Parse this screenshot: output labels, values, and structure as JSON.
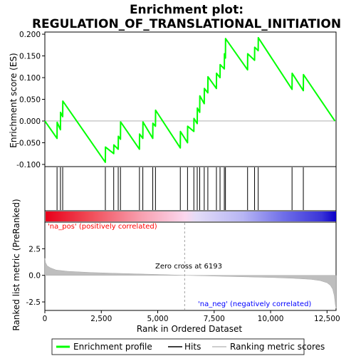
{
  "chart_data": [
    {
      "type": "line",
      "title": "Enrichment plot:",
      "subtitle": "REGULATION_OF_TRANSLATIONAL_INITIATION",
      "ylabel": "Enrichment score (ES)",
      "ylim": [
        -0.105,
        0.205
      ],
      "xlim": [
        0,
        12900
      ],
      "yticks": [
        "-0.100",
        "-0.050",
        "0.000",
        "0.050",
        "0.100",
        "0.150",
        "0.200"
      ],
      "ytick_values": [
        -0.1,
        -0.05,
        0.0,
        0.05,
        0.1,
        0.15,
        0.2
      ],
      "series": [
        {
          "name": "Enrichment profile",
          "color": "#00ff00",
          "x": [
            0,
            540,
            545,
            690,
            695,
            790,
            795,
            2680,
            2685,
            3050,
            3055,
            3250,
            3255,
            3350,
            3355,
            4190,
            4195,
            4340,
            4345,
            4780,
            4785,
            4900,
            4905,
            6000,
            6005,
            6320,
            6325,
            6600,
            6605,
            6750,
            6755,
            6860,
            6865,
            7060,
            7065,
            7220,
            7225,
            7600,
            7605,
            7760,
            7765,
            7950,
            7955,
            8000,
            8005,
            8980,
            8985,
            9290,
            9295,
            9450,
            9455,
            10950,
            10955,
            11450,
            11455,
            12850
          ],
          "y": [
            0.0,
            -0.04,
            -0.003,
            -0.02,
            0.02,
            0.01,
            0.046,
            -0.095,
            -0.06,
            -0.075,
            -0.055,
            -0.065,
            -0.035,
            -0.042,
            -0.002,
            -0.065,
            -0.03,
            -0.04,
            -0.002,
            -0.04,
            -0.005,
            -0.012,
            0.025,
            -0.062,
            -0.024,
            -0.05,
            -0.012,
            -0.024,
            0.006,
            -0.006,
            0.03,
            0.02,
            0.058,
            0.04,
            0.075,
            0.065,
            0.102,
            0.075,
            0.11,
            0.1,
            0.13,
            0.12,
            0.155,
            0.145,
            0.19,
            0.118,
            0.155,
            0.14,
            0.17,
            0.162,
            0.192,
            0.073,
            0.11,
            0.07,
            0.107,
            0.0
          ]
        }
      ]
    },
    {
      "type": "scatter",
      "name": "hits",
      "series": [
        {
          "name": "Hits",
          "color": "#000000",
          "x": [
            540,
            690,
            790,
            2680,
            3050,
            3250,
            3350,
            4190,
            4340,
            4780,
            4900,
            6000,
            6320,
            6600,
            6750,
            6860,
            7060,
            7220,
            7600,
            7760,
            7950,
            8000,
            8980,
            9290,
            9450,
            10950,
            11450
          ]
        }
      ]
    },
    {
      "type": "area",
      "xlabel": "Rank in Ordered Dataset",
      "ylabel": "Ranked list metric (PreRanked)",
      "ylim": [
        -3.3,
        5.0
      ],
      "xlim": [
        0,
        12900
      ],
      "yticks": [
        "-2.5",
        "0.0",
        "2.5"
      ],
      "ytick_values": [
        -2.5,
        0.0,
        2.5
      ],
      "xticks": [
        "0",
        "2,500",
        "5,000",
        "7,500",
        "10,000",
        "12,500"
      ],
      "xtick_values": [
        0,
        2500,
        5000,
        7500,
        10000,
        12500
      ],
      "zero_cross": 6193,
      "annotations": {
        "zero_cross": "Zero cross at 6193",
        "pos": "'na_pos' (positively correlated)",
        "neg": "'na_neg' (negatively correlated)"
      },
      "series": [
        {
          "name": "Ranking metric scores",
          "color": "#bebebe",
          "x": [
            0,
            30,
            100,
            250,
            500,
            1000,
            2000,
            3000,
            4000,
            5000,
            6193,
            7000,
            8000,
            9000,
            10000,
            11000,
            11800,
            12200,
            12500,
            12650,
            12750,
            12820,
            12870,
            12900
          ],
          "values": [
            1.6,
            1.2,
            0.9,
            0.7,
            0.5,
            0.38,
            0.27,
            0.2,
            0.14,
            0.08,
            0.0,
            -0.04,
            -0.1,
            -0.15,
            -0.2,
            -0.28,
            -0.38,
            -0.5,
            -0.7,
            -0.95,
            -1.3,
            -1.9,
            -2.8,
            -3.1
          ]
        }
      ]
    }
  ],
  "legend": {
    "items": [
      {
        "label": "Enrichment profile",
        "color": "#00ff00"
      },
      {
        "label": "Hits",
        "color": "#000000"
      },
      {
        "label": "Ranking metric scores",
        "color": "#bebebe"
      }
    ]
  },
  "colors": {
    "es_line": "#00ff00",
    "hit": "#000000",
    "metric": "#bebebe",
    "pos_label": "#ff0000",
    "neg_label": "#0000ff",
    "zero_line": "#a0a0a0"
  }
}
